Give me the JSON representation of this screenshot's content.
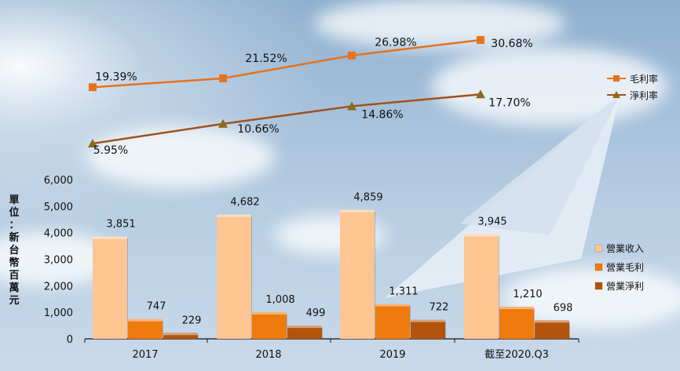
{
  "chart_data": [
    {
      "type": "line",
      "x": [
        "2017",
        "2018",
        "2019",
        "截至2020.Q3"
      ],
      "series": [
        {
          "name": "毛利率",
          "values": [
            19.39,
            21.52,
            26.98,
            30.68
          ],
          "labels": [
            "19.39%",
            "21.52%",
            "26.98%",
            "30.68%"
          ],
          "color": "#e3731f",
          "marker": "square"
        },
        {
          "name": "淨利率",
          "values": [
            5.95,
            10.66,
            14.86,
            17.7
          ],
          "labels": [
            "5.95%",
            "10.66%",
            "14.86%",
            "17.70%"
          ],
          "color": "#a2501a",
          "marker": "triangle"
        }
      ],
      "legend_position": "right"
    },
    {
      "type": "bar",
      "categories": [
        "2017",
        "2018",
        "2019",
        "截至2020.Q3"
      ],
      "series": [
        {
          "name": "營業收入",
          "values": [
            3851,
            4682,
            4859,
            3945
          ],
          "color": "#fcc592"
        },
        {
          "name": "營業毛利",
          "values": [
            747,
            1008,
            1311,
            1210
          ],
          "color": "#ef7a0e"
        },
        {
          "name": "營業淨利",
          "values": [
            229,
            499,
            722,
            698
          ],
          "color": "#b4540c"
        }
      ],
      "ylabel": "單位：新台幣百萬元",
      "ylim": [
        0,
        6000
      ],
      "yticks": [
        "0",
        "1,000",
        "2,000",
        "3,000",
        "4,000",
        "5,000",
        "6,000"
      ],
      "grid": false,
      "legend_position": "right"
    }
  ]
}
